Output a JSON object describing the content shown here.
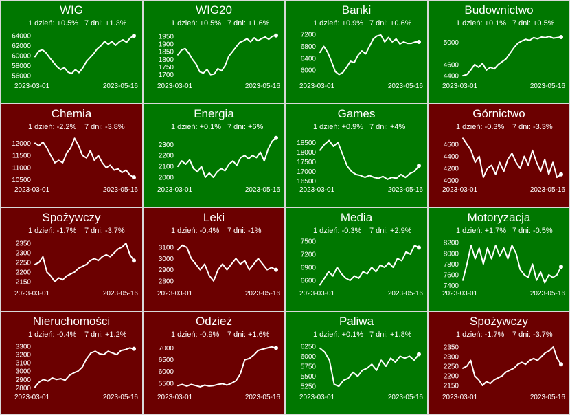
{
  "date_start": "2023-03-01",
  "date_end": "2023-05-16",
  "colors": {
    "up": "#007700",
    "down": "#6b0000",
    "line": "#ffffff",
    "border": "#d9d9d9"
  },
  "chart_data": [
    {
      "type": "line",
      "title": "WIG",
      "trend": "up",
      "stats": {
        "day": "1 dzień: +0.5%",
        "week": "7 dni: +1.3%"
      },
      "yticks": [
        56000,
        58000,
        60000,
        62000,
        64000
      ],
      "ylim": [
        55300,
        65000
      ],
      "values": [
        59800,
        60900,
        61200,
        60600,
        59600,
        58700,
        57800,
        57200,
        57600,
        56700,
        56400,
        57200,
        56600,
        57500,
        58800,
        59600,
        60400,
        61400,
        62000,
        62900,
        62300,
        62900,
        62100,
        62800,
        63200,
        62700,
        63600,
        64000
      ]
    },
    {
      "type": "line",
      "title": "WIG20",
      "trend": "up",
      "stats": {
        "day": "1 dzień: +0.5%",
        "week": "7 dni: +1.6%"
      },
      "yticks": [
        1700,
        1750,
        1800,
        1850,
        1900,
        1950
      ],
      "ylim": [
        1672,
        1985
      ],
      "values": [
        1830,
        1860,
        1870,
        1840,
        1800,
        1770,
        1720,
        1710,
        1735,
        1700,
        1705,
        1740,
        1725,
        1760,
        1820,
        1850,
        1880,
        1910,
        1920,
        1935,
        1915,
        1940,
        1920,
        1935,
        1945,
        1930,
        1950,
        1955
      ]
    },
    {
      "type": "line",
      "title": "Banki",
      "trend": "up",
      "stats": {
        "day": "1 dzień: +0.9%",
        "week": "7 dni: +0.6%"
      },
      "yticks": [
        6000,
        6400,
        6800,
        7200
      ],
      "ylim": [
        5700,
        7320
      ],
      "values": [
        6600,
        6800,
        6600,
        6300,
        5950,
        5850,
        5920,
        6100,
        6300,
        6250,
        6500,
        6650,
        6550,
        6800,
        7050,
        7150,
        7180,
        6950,
        7100,
        6950,
        7050,
        6880,
        6950,
        6900,
        6900,
        6950,
        6950
      ]
    },
    {
      "type": "line",
      "title": "Budownictwo",
      "trend": "up",
      "stats": {
        "day": "1 dzień: +0.1%",
        "week": "7 dni: +0.5%"
      },
      "yticks": [
        4400,
        4600,
        5000
      ],
      "ylim": [
        4340,
        5200
      ],
      "values": [
        4400,
        4420,
        4500,
        4600,
        4550,
        4620,
        4500,
        4550,
        4520,
        4600,
        4650,
        4700,
        4800,
        4900,
        4980,
        5020,
        5050,
        5030,
        5080,
        5060,
        5090,
        5080,
        5100,
        5070,
        5080,
        5090
      ]
    },
    {
      "type": "line",
      "title": "Chemia",
      "trend": "down",
      "stats": {
        "day": "1 dzień: -2.2%",
        "week": "7 dni: -3.8%"
      },
      "yticks": [
        10500,
        11000,
        11500,
        12000
      ],
      "ylim": [
        10380,
        12350
      ],
      "values": [
        12000,
        11900,
        12050,
        11800,
        11500,
        11200,
        11300,
        11200,
        11600,
        11800,
        12200,
        11900,
        11500,
        11400,
        11700,
        11300,
        11500,
        11200,
        11000,
        11100,
        10900,
        10950,
        10800,
        10900,
        10700,
        10600
      ]
    },
    {
      "type": "line",
      "title": "Energia",
      "trend": "up",
      "stats": {
        "day": "1 dzień: +0.1%",
        "week": "7 dni: +6%"
      },
      "yticks": [
        2000,
        2100,
        2200,
        2300
      ],
      "ylim": [
        1950,
        2390
      ],
      "values": [
        2100,
        2150,
        2120,
        2160,
        2080,
        2050,
        2100,
        2000,
        2040,
        2000,
        2050,
        2080,
        2060,
        2120,
        2150,
        2110,
        2180,
        2200,
        2170,
        2200,
        2180,
        2230,
        2150,
        2260,
        2330,
        2360
      ]
    },
    {
      "type": "line",
      "title": "Games",
      "trend": "up",
      "stats": {
        "day": "1 dzień: +0.9%",
        "week": "7 dni: +4%"
      },
      "yticks": [
        16500,
        17000,
        17500,
        18000,
        18500
      ],
      "ylim": [
        16420,
        18900
      ],
      "values": [
        18100,
        18400,
        18600,
        18300,
        18500,
        17900,
        17300,
        17000,
        16850,
        16800,
        16700,
        16800,
        16700,
        16650,
        16750,
        16600,
        16700,
        16650,
        16850,
        16700,
        16900,
        17000,
        17300
      ]
    },
    {
      "type": "line",
      "title": "Górnictwo",
      "trend": "down",
      "stats": {
        "day": "1 dzień: -0.3%",
        "week": "7 dni: -3.3%"
      },
      "yticks": [
        4000,
        4200,
        4400,
        4600
      ],
      "ylim": [
        3960,
        4760
      ],
      "values": [
        4700,
        4600,
        4500,
        4300,
        4400,
        4050,
        4200,
        4250,
        4100,
        4300,
        4150,
        4350,
        4450,
        4300,
        4200,
        4400,
        4250,
        4500,
        4300,
        4150,
        4350,
        4100,
        4300,
        4050,
        4100
      ]
    },
    {
      "type": "line",
      "title": "Spożywczy",
      "trend": "down",
      "stats": {
        "day": "1 dzień: -1.7%",
        "week": "7 dni: -3.7%"
      },
      "yticks": [
        2150,
        2200,
        2250,
        2300,
        2350
      ],
      "ylim": [
        2125,
        2375
      ],
      "values": [
        2240,
        2250,
        2280,
        2200,
        2180,
        2150,
        2170,
        2160,
        2180,
        2190,
        2200,
        2220,
        2230,
        2240,
        2260,
        2270,
        2260,
        2280,
        2290,
        2280,
        2300,
        2320,
        2330,
        2350,
        2290,
        2260
      ]
    },
    {
      "type": "line",
      "title": "Leki",
      "trend": "down",
      "stats": {
        "day": "1 dzień: -0.4%",
        "week": "7 dni: -1%"
      },
      "yticks": [
        2800,
        2900,
        3000,
        3100
      ],
      "ylim": [
        2750,
        3180
      ],
      "values": [
        3080,
        3120,
        3100,
        3000,
        2950,
        2900,
        2950,
        2850,
        2800,
        2900,
        2950,
        2900,
        2950,
        3000,
        2950,
        2980,
        2900,
        2950,
        3000,
        2950,
        2900,
        2920,
        2900
      ]
    },
    {
      "type": "line",
      "title": "Media",
      "trend": "up",
      "stats": {
        "day": "1 dzień: -0.3%",
        "week": "7 dni: +2.9%"
      },
      "yticks": [
        6600,
        6900,
        7200,
        7500
      ],
      "ylim": [
        6460,
        7560
      ],
      "values": [
        6500,
        6650,
        6800,
        6700,
        6900,
        6750,
        6650,
        6600,
        6700,
        6650,
        6800,
        6750,
        6900,
        6800,
        6950,
        6900,
        7000,
        6900,
        7100,
        7050,
        7250,
        7200,
        7400,
        7350
      ]
    },
    {
      "type": "line",
      "title": "Motoryzacja",
      "trend": "up",
      "stats": {
        "day": "1 dzień: +1.7%",
        "week": "7 dni: -0.5%"
      },
      "yticks": [
        7400,
        7600,
        7800,
        8000,
        8200
      ],
      "ylim": [
        7380,
        8280
      ],
      "values": [
        7500,
        7800,
        8150,
        7900,
        8100,
        7800,
        8100,
        7900,
        8150,
        7950,
        8100,
        7900,
        8150,
        8000,
        7700,
        7600,
        7550,
        7800,
        7500,
        7650,
        7450,
        7600,
        7550,
        7600,
        7750
      ]
    },
    {
      "type": "line",
      "title": "Nieruchomości",
      "trend": "down",
      "stats": {
        "day": "1 dzień: -0.4%",
        "week": "7 dni: +1.2%"
      },
      "yticks": [
        2800,
        2900,
        3000,
        3100,
        3200,
        3300
      ],
      "ylim": [
        2770,
        3350
      ],
      "values": [
        2810,
        2870,
        2900,
        2880,
        2920,
        2900,
        2910,
        2890,
        2950,
        2980,
        3000,
        3050,
        3150,
        3220,
        3240,
        3210,
        3200,
        3240,
        3220,
        3200,
        3250,
        3260,
        3280,
        3270
      ]
    },
    {
      "type": "line",
      "title": "Odzież",
      "trend": "down",
      "stats": {
        "day": "1 dzień: -0.9%",
        "week": "7 dni: +1.6%"
      },
      "yticks": [
        5500,
        6000,
        6500,
        7000
      ],
      "ylim": [
        5200,
        7250
      ],
      "values": [
        5400,
        5450,
        5380,
        5450,
        5400,
        5350,
        5420,
        5380,
        5400,
        5450,
        5480,
        5420,
        5500,
        5600,
        5900,
        6500,
        6550,
        6700,
        6900,
        6950,
        7000,
        7050,
        7000
      ]
    },
    {
      "type": "line",
      "title": "Paliwa",
      "trend": "up",
      "stats": {
        "day": "1 dzień: +0.1%",
        "week": "7 dni: +1.8%"
      },
      "yticks": [
        5250,
        5500,
        5750,
        6000,
        6250
      ],
      "ylim": [
        5150,
        6350
      ],
      "values": [
        6200,
        6100,
        5900,
        5300,
        5250,
        5400,
        5450,
        5600,
        5500,
        5650,
        5700,
        5800,
        5650,
        5900,
        5750,
        5950,
        5850,
        6000,
        5950,
        6000,
        5900,
        6050
      ]
    },
    {
      "type": "line",
      "title": "Spożywczy",
      "trend": "down",
      "stats": {
        "day": "1 dzień: -1.7%",
        "week": "7 dni: -3.7%"
      },
      "yticks": [
        2150,
        2200,
        2250,
        2300,
        2350
      ],
      "ylim": [
        2125,
        2375
      ],
      "values": [
        2240,
        2250,
        2280,
        2200,
        2180,
        2150,
        2170,
        2160,
        2180,
        2190,
        2200,
        2220,
        2230,
        2240,
        2260,
        2270,
        2260,
        2280,
        2290,
        2280,
        2300,
        2320,
        2330,
        2350,
        2290,
        2260
      ]
    }
  ]
}
